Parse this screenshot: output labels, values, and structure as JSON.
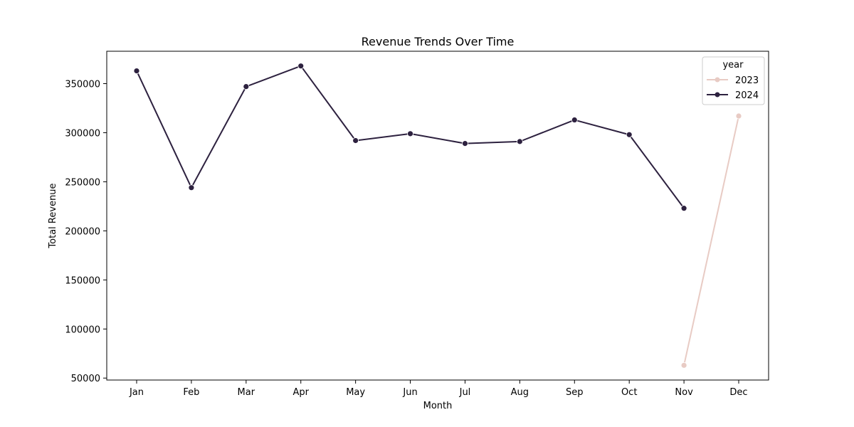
{
  "chart_data": {
    "type": "line",
    "title": "Revenue Trends Over Time",
    "xlabel": "Month",
    "ylabel": "Total Revenue",
    "categories": [
      "Jan",
      "Feb",
      "Mar",
      "Apr",
      "May",
      "Jun",
      "Jul",
      "Aug",
      "Sep",
      "Oct",
      "Nov",
      "Dec"
    ],
    "yticks": [
      50000,
      100000,
      150000,
      200000,
      250000,
      300000,
      350000
    ],
    "ylim": [
      48000,
      383000
    ],
    "grid": false,
    "legend": {
      "title": "year",
      "placement": "top-right"
    },
    "series": [
      {
        "name": "2023",
        "color": "#e8cbc4",
        "values": [
          null,
          null,
          null,
          null,
          null,
          null,
          null,
          null,
          null,
          null,
          63000,
          317000
        ]
      },
      {
        "name": "2024",
        "color": "#2d213f",
        "values": [
          363000,
          244000,
          347000,
          368000,
          292000,
          299000,
          289000,
          291000,
          313000,
          298000,
          223000,
          null
        ]
      }
    ]
  }
}
